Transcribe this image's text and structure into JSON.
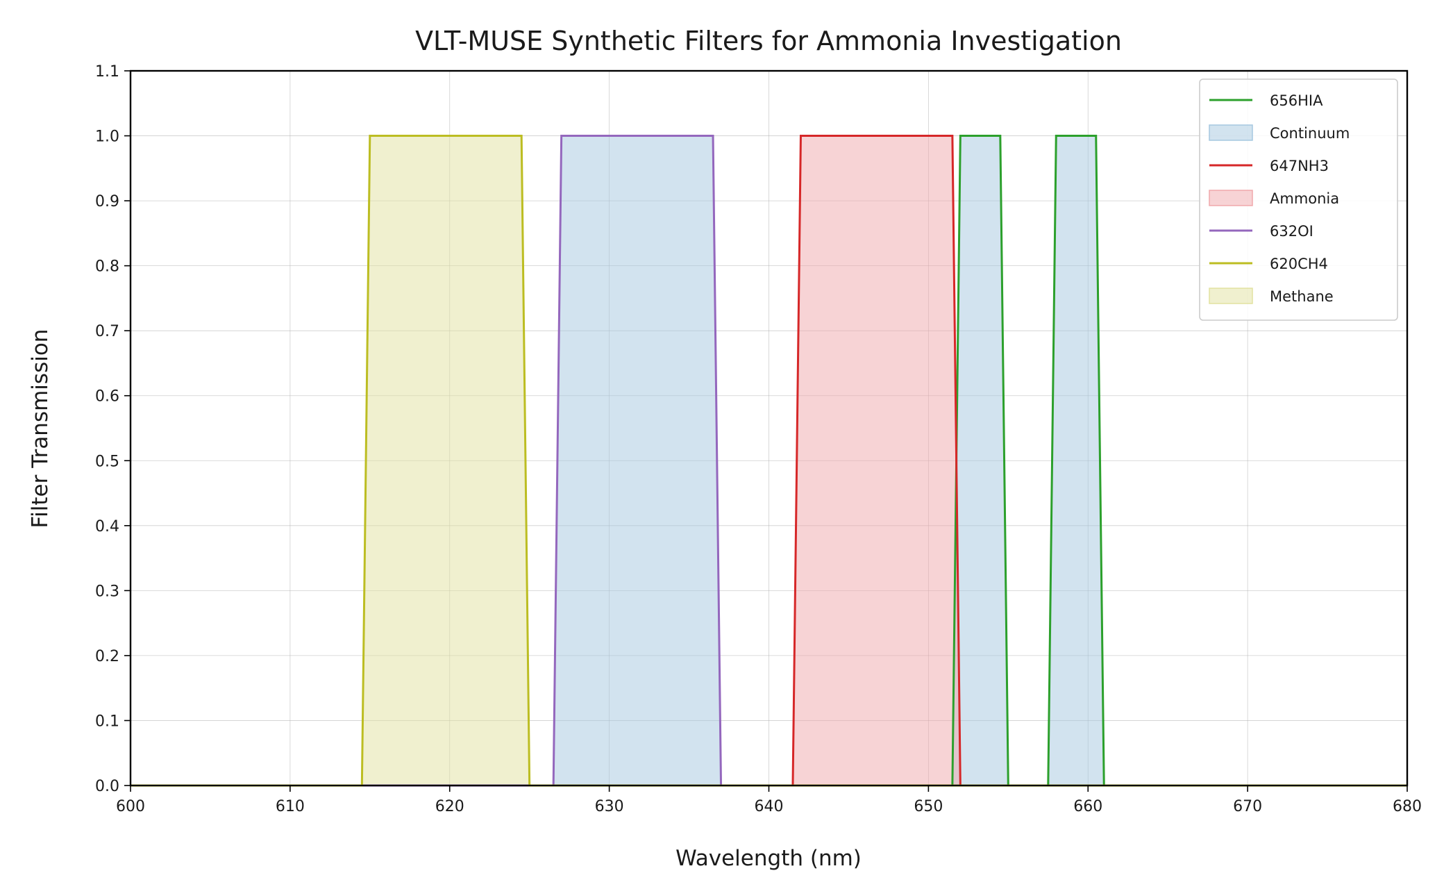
{
  "chart_data": {
    "type": "line",
    "title": "VLT-MUSE Synthetic Filters for Ammonia Investigation",
    "xlabel": "Wavelength (nm)",
    "ylabel": "Filter Transmission",
    "xlim": [
      600,
      680
    ],
    "ylim": [
      0.0,
      1.1
    ],
    "xticks": [
      "600",
      "610",
      "620",
      "630",
      "640",
      "650",
      "660",
      "670",
      "680"
    ],
    "yticks": [
      "0.0",
      "0.1",
      "0.2",
      "0.3",
      "0.4",
      "0.5",
      "0.6",
      "0.7",
      "0.8",
      "0.9",
      "1.0",
      "1.1"
    ],
    "grid": true,
    "legend_position": "upper-right",
    "series": [
      {
        "name": "656HIA",
        "color": "#2ca02c",
        "fill_color": "#a6c8e0",
        "x": [
          600,
          651.5,
          652.0,
          654.5,
          655.0,
          657.5,
          658.0,
          660.5,
          661.0,
          680
        ],
        "y": [
          0,
          0,
          1,
          1,
          0,
          0,
          1,
          1,
          0,
          0
        ]
      },
      {
        "name": "647NH3",
        "color": "#d62728",
        "fill_color": "#f0a8ac",
        "x": [
          600,
          641.5,
          642.0,
          651.5,
          652.0,
          680
        ],
        "y": [
          0,
          0,
          1,
          1,
          0,
          0
        ]
      },
      {
        "name": "632OI",
        "color": "#9467bd",
        "fill_color": "#a6c8e0",
        "x": [
          600,
          626.5,
          627.0,
          636.5,
          637.0,
          680
        ],
        "y": [
          0,
          0,
          1,
          1,
          0,
          0
        ]
      },
      {
        "name": "620CH4",
        "color": "#bcbd22",
        "fill_color": "#e2e2a0",
        "x": [
          600,
          614.5,
          615.0,
          624.5,
          625.0,
          680
        ],
        "y": [
          0,
          0,
          1,
          1,
          0,
          0
        ]
      }
    ],
    "legend": [
      {
        "label": "656HIA",
        "kind": "line",
        "color": "#2ca02c"
      },
      {
        "label": "Continuum",
        "kind": "patch",
        "color": "#a6c8e0"
      },
      {
        "label": "647NH3",
        "kind": "line",
        "color": "#d62728"
      },
      {
        "label": "Ammonia",
        "kind": "patch",
        "color": "#f0a8ac"
      },
      {
        "label": "632OI",
        "kind": "line",
        "color": "#9467bd"
      },
      {
        "label": "620CH4",
        "kind": "line",
        "color": "#bcbd22"
      },
      {
        "label": "Methane",
        "kind": "patch",
        "color": "#e2e2a0"
      }
    ]
  }
}
